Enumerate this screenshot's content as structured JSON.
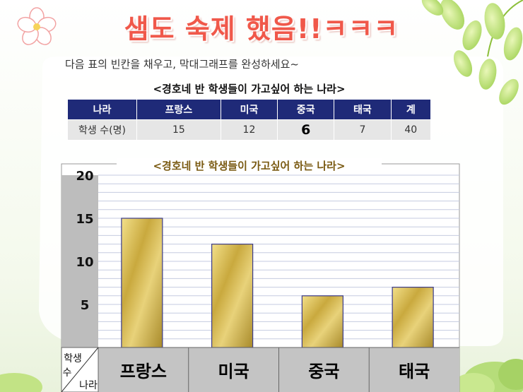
{
  "header": {
    "title": "샘도 숙제 했음!!ㅋㅋㅋ",
    "instruction": "다음 표의 빈칸을 채우고, 막대그래프를 완성하세요~"
  },
  "table": {
    "caption": "<경호네 반 학생들이 가고싶어 하는 나라>",
    "headers": [
      "나라",
      "프랑스",
      "미국",
      "중국",
      "태국",
      "계"
    ],
    "row_label": "학생 수(명)",
    "values": [
      "15",
      "12",
      "6",
      "7",
      "40"
    ]
  },
  "chart_data": {
    "type": "bar",
    "title": "<경호네 반 학생들이 가고싶어 하는 나라>",
    "categories": [
      "프랑스",
      "미국",
      "중국",
      "태국"
    ],
    "values": [
      15,
      12,
      6,
      7
    ],
    "ylim": [
      0,
      20
    ],
    "yticks": [
      5,
      10,
      15,
      20
    ],
    "corner_label": {
      "top": "학생",
      "middle": "수",
      "bottom": "나라"
    },
    "grid": true,
    "bar_color": "#c9a93e"
  },
  "colors": {
    "title": "#f0584a",
    "table_header": "#1f2a78",
    "table_cell": "#e6e6e6",
    "chart_caption": "#7a5a12"
  }
}
